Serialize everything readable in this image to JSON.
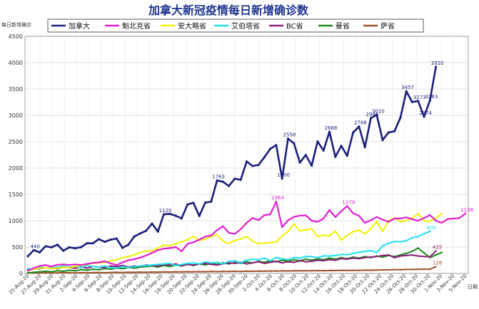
{
  "chart_data": {
    "type": "line",
    "title": "加拿大新冠疫情每日新增确诊数",
    "ylabel": "每日新增确诊",
    "xlabel": "日期",
    "ylim": [
      0,
      4500
    ],
    "yticks": [
      0,
      500,
      1000,
      1500,
      2000,
      2500,
      3000,
      3500,
      4000,
      4500
    ],
    "grid": true,
    "legend": "top",
    "xtick_labels": [
      "25-Aug-20",
      "27-Aug-20",
      "29-Aug-20",
      "31-Aug-20",
      "2-Sep-20",
      "4-Sep-20",
      "6-Sep-20",
      "8-Sep-20",
      "10-Sep-20",
      "12-Sep-20",
      "14-Sep-20",
      "16-Sep-20",
      "18-Sep-20",
      "20-Sep-20",
      "22-Sep-20",
      "24-Sep-20",
      "26-Sep-20",
      "28-Sep-20",
      "30-Sep-20",
      "2-Oct-20",
      "4-Oct-20",
      "6-Oct-20",
      "8-Oct-20",
      "10-Oct-20",
      "12-Oct-20",
      "14-Oct-20",
      "16-Oct-20",
      "18-Oct-20",
      "20-Oct-20",
      "22-Oct-20",
      "24-Oct-20",
      "26-Oct-20",
      "28-Oct-20",
      "30-Oct-20",
      "1-Nov-20",
      "3-Nov-20",
      "5-Nov-20"
    ],
    "series": [
      {
        "name": "加拿大",
        "color": "#1a1f7a",
        "values": [
          325,
          440,
          400,
          516,
          495,
          545,
          431,
          495,
          477,
          498,
          571,
          572,
          648,
          600,
          640,
          661,
          485,
          545,
          702,
          758,
          810,
          944,
          793,
          1120,
          1130,
          1094,
          1044,
          1307,
          1341,
          1090,
          1343,
          1362,
          1763,
          1739,
          1660,
          1797,
          1777,
          2124,
          2039,
          2058,
          2206,
          2363,
          2436,
          1800,
          2558,
          2468,
          2103,
          2247,
          2046,
          2504,
          2333,
          2688,
          2211,
          2422,
          2232,
          2671,
          2788,
          2394,
          2946,
          3010,
          2531,
          2674,
          2699,
          2956,
          3457,
          3253,
          3273,
          2974,
          3283,
          3920
        ]
      },
      {
        "name": "魁北克省",
        "color": "#e020d0",
        "values": [
          50,
          100,
          140,
          160,
          130,
          165,
          170,
          160,
          170,
          160,
          180,
          200,
          210,
          230,
          190,
          160,
          210,
          250,
          270,
          300,
          340,
          390,
          440,
          470,
          480,
          500,
          420,
          560,
          590,
          640,
          700,
          720,
          820,
          896,
          770,
          750,
          840,
          960,
          1052,
          1012,
          1107,
          1119,
          1364,
          880,
          1007,
          1073,
          1097,
          1102,
          1000,
          980,
          1040,
          1203,
          1070,
          1180,
          1279,
          1140,
          1094,
          960,
          1010,
          1072,
          1020,
          980,
          1040,
          1042,
          1064,
          1030,
          1000,
          1050,
          1108,
          1000,
          960,
          1032,
          1041,
          1050,
          1138
        ]
      },
      {
        "name": "安大略省",
        "color": "#f0f000",
        "values": [
          50,
          80,
          100,
          110,
          90,
          100,
          120,
          110,
          130,
          150,
          170,
          190,
          200,
          210,
          240,
          260,
          300,
          320,
          350,
          400,
          420,
          430,
          480,
          540,
          520,
          560,
          600,
          640,
          700,
          625,
          653,
          700,
          732,
          615,
          566,
          625,
          653,
          700,
          615,
          565,
          575,
          583,
          600,
          710,
          797,
          939,
          806,
          826,
          849,
          700,
          721,
          712,
          805,
          630,
          723,
          790,
          821,
          748,
          854,
          978,
          800,
          1000,
          1050,
          987,
          1000,
          1050,
          1132,
          1000,
          987,
          1050,
          1132
        ]
      },
      {
        "name": "艾伯塔省",
        "color": "#20e0f0",
        "values": [
          90,
          80,
          120,
          110,
          100,
          120,
          140,
          120,
          130,
          110,
          150,
          130,
          120,
          140,
          110,
          100,
          130,
          110,
          130,
          140,
          150,
          160,
          170,
          180,
          190,
          150,
          170,
          190,
          200,
          180,
          220,
          200,
          210,
          180,
          230,
          240,
          200,
          250,
          270,
          260,
          290,
          240,
          300,
          277,
          260,
          300,
          290,
          320,
          320,
          300,
          332,
          330,
          339,
          360,
          356,
          380,
          400,
          417,
          432,
          400,
          522,
          572,
          604,
          600,
          620,
          680,
          700,
          750,
          800
        ]
      },
      {
        "name": "BC省",
        "color": "#8e1c7a",
        "values": [
          70,
          80,
          90,
          110,
          100,
          90,
          120,
          110,
          100,
          120,
          100,
          130,
          120,
          110,
          140,
          130,
          150,
          120,
          140,
          130,
          160,
          150,
          140,
          170,
          160,
          180,
          150,
          170,
          160,
          180,
          190,
          170,
          160,
          180,
          200,
          190,
          210,
          180,
          200,
          220,
          190,
          210,
          230,
          200,
          220,
          210,
          240,
          220,
          230,
          250,
          240,
          260,
          250,
          280,
          270,
          290,
          280,
          300,
          310,
          320,
          340,
          350,
          300,
          330,
          340,
          350,
          330,
          320,
          315,
          425
        ]
      },
      {
        "name": "曼省",
        "color": "#1a8a1a",
        "values": [
          10,
          20,
          30,
          40,
          30,
          50,
          40,
          60,
          50,
          70,
          60,
          80,
          70,
          90,
          80,
          100,
          90,
          110,
          100,
          120,
          130,
          140,
          120,
          150,
          130,
          160,
          140,
          170,
          150,
          180,
          160,
          190,
          170,
          200,
          180,
          210,
          190,
          220,
          200,
          230,
          210,
          240,
          220,
          250,
          230,
          260,
          240,
          270,
          250,
          280,
          260,
          290,
          270,
          300,
          280,
          310,
          290,
          320,
          300,
          330,
          310,
          340,
          320,
          350,
          380,
          420,
          480,
          390,
          300,
          350,
          400
        ]
      },
      {
        "name": "萨省",
        "color": "#a0522d",
        "values": [
          5,
          8,
          10,
          12,
          8,
          10,
          15,
          12,
          10,
          14,
          12,
          15,
          18,
          14,
          16,
          20,
          18,
          22,
          20,
          24,
          22,
          26,
          24,
          28,
          26,
          30,
          28,
          32,
          30,
          34,
          32,
          36,
          34,
          38,
          36,
          40,
          38,
          42,
          40,
          44,
          42,
          46,
          44,
          48,
          46,
          50,
          48,
          52,
          50,
          54,
          52,
          56,
          54,
          58,
          56,
          60,
          58,
          62,
          60,
          64,
          66,
          68,
          70,
          72,
          74,
          76,
          78,
          80,
          80,
          128
        ]
      }
    ],
    "data_labels": [
      {
        "series": 0,
        "i": 69,
        "text": "3920"
      },
      {
        "series": 0,
        "i": 68,
        "text": "3283"
      },
      {
        "series": 0,
        "i": 66,
        "text": "3273"
      },
      {
        "series": 0,
        "i": 64,
        "text": "3457"
      },
      {
        "series": 0,
        "i": 67,
        "text": "2974"
      },
      {
        "series": 0,
        "i": 59,
        "text": "3010"
      },
      {
        "series": 0,
        "i": 58,
        "text": "2946"
      },
      {
        "series": 0,
        "i": 56,
        "text": "2788"
      },
      {
        "series": 0,
        "i": 51,
        "text": "2688"
      },
      {
        "series": 0,
        "i": 44,
        "text": "2558"
      },
      {
        "series": 0,
        "i": 43,
        "text": "1800"
      },
      {
        "series": 0,
        "i": 32,
        "text": "1763"
      },
      {
        "series": 0,
        "i": 23,
        "text": "1120"
      },
      {
        "series": 0,
        "i": 1,
        "text": "440"
      },
      {
        "series": 1,
        "i": 42,
        "text": "1364"
      },
      {
        "series": 1,
        "i": 54,
        "text": "1279"
      },
      {
        "series": 1,
        "i": 74,
        "text": "1138"
      },
      {
        "series": 3,
        "i": 68,
        "text": "800"
      },
      {
        "series": 4,
        "i": 69,
        "text": "425"
      },
      {
        "series": 6,
        "i": 69,
        "text": "128"
      }
    ]
  }
}
